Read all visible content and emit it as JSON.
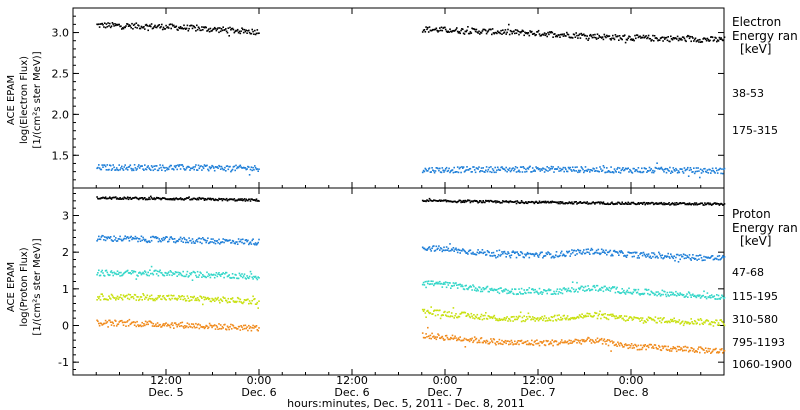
{
  "x_axis_label": "hours:minutes, Dec. 5, 2011 - Dec. 8, 2011",
  "x_ticks": [
    {
      "time": "12:00",
      "date": "Dec. 5",
      "hours": 12
    },
    {
      "time": "0:00",
      "date": "Dec. 6",
      "hours": 24
    },
    {
      "time": "12:00",
      "date": "Dec. 6",
      "hours": 36
    },
    {
      "time": "0:00",
      "date": "Dec. 7",
      "hours": 48
    },
    {
      "time": "12:00",
      "date": "Dec. 7",
      "hours": 60
    },
    {
      "time": "0:00",
      "date": "Dec. 8",
      "hours": 72
    }
  ],
  "chart_data": [
    {
      "type": "scatter",
      "panel": "electron",
      "ylabel": [
        "ACE EPAM",
        "log(Electron Flux)",
        "[1/(cm²s ster MeV)]"
      ],
      "legend_title": [
        "Electron",
        "Energy ran",
        "[keV]"
      ],
      "xlim": [
        0,
        84
      ],
      "ylim": [
        1.1,
        3.3
      ],
      "yticks": [
        1.5,
        2.0,
        2.5,
        3.0
      ],
      "ytick_labels": [
        "1.5",
        "2.0",
        "2.5",
        "3.0"
      ],
      "gaps": [
        [
          24,
          45
        ]
      ],
      "series": [
        {
          "name": "38-53",
          "color": "#000000",
          "points": [
            [
              3,
              3.1
            ],
            [
              12,
              3.08
            ],
            [
              23.5,
              3.02
            ],
            [
              45,
              3.05
            ],
            [
              60,
              3.0
            ],
            [
              70,
              2.95
            ],
            [
              84,
              2.92
            ]
          ]
        },
        {
          "name": "175-315",
          "color": "#1f7fd8",
          "points": [
            [
              3,
              1.36
            ],
            [
              12,
              1.36
            ],
            [
              23.5,
              1.35
            ],
            [
              45,
              1.33
            ],
            [
              60,
              1.34
            ],
            [
              70,
              1.33
            ],
            [
              84,
              1.32
            ]
          ]
        }
      ]
    },
    {
      "type": "scatter",
      "panel": "proton",
      "ylabel": [
        "ACE EPAM",
        "log(Proton Flux)",
        "[1/(cm²s ster MeV)]"
      ],
      "legend_title": [
        "Proton",
        "Energy ran",
        "[keV]"
      ],
      "xlim": [
        0,
        84
      ],
      "ylim": [
        -1.35,
        3.75
      ],
      "yticks": [
        -1,
        0,
        1,
        2,
        3
      ],
      "ytick_labels": [
        "-1",
        "0",
        "1",
        "2",
        "3"
      ],
      "gaps": [
        [
          24,
          45
        ]
      ],
      "series": [
        {
          "name": "47-68",
          "color": "#000000",
          "points": [
            [
              3,
              3.5
            ],
            [
              12,
              3.48
            ],
            [
              23.5,
              3.44
            ],
            [
              45,
              3.42
            ],
            [
              60,
              3.38
            ],
            [
              72,
              3.35
            ],
            [
              84,
              3.33
            ]
          ]
        },
        {
          "name": "115-195",
          "color": "#1f7fd8",
          "points": [
            [
              3,
              2.4
            ],
            [
              12,
              2.36
            ],
            [
              23.5,
              2.3
            ],
            [
              45,
              2.15
            ],
            [
              56,
              1.95
            ],
            [
              62,
              1.95
            ],
            [
              67,
              2.05
            ],
            [
              72,
              1.95
            ],
            [
              84,
              1.85
            ]
          ]
        },
        {
          "name": "310-580",
          "color": "#33d6c8",
          "points": [
            [
              3,
              1.45
            ],
            [
              12,
              1.45
            ],
            [
              23.5,
              1.35
            ],
            [
              45,
              1.2
            ],
            [
              56,
              0.95
            ],
            [
              62,
              0.95
            ],
            [
              67,
              1.05
            ],
            [
              72,
              0.95
            ],
            [
              84,
              0.8
            ]
          ]
        },
        {
          "name": "795-1193",
          "color": "#c8e010",
          "points": [
            [
              3,
              0.8
            ],
            [
              12,
              0.78
            ],
            [
              23.5,
              0.68
            ],
            [
              45,
              0.4
            ],
            [
              56,
              0.2
            ],
            [
              62,
              0.22
            ],
            [
              67,
              0.3
            ],
            [
              72,
              0.2
            ],
            [
              84,
              0.1
            ]
          ]
        },
        {
          "name": "1060-1900",
          "color": "#f08a1c",
          "points": [
            [
              3,
              0.1
            ],
            [
              12,
              0.05
            ],
            [
              23.5,
              -0.05
            ],
            [
              45,
              -0.25
            ],
            [
              56,
              -0.45
            ],
            [
              62,
              -0.45
            ],
            [
              67,
              -0.38
            ],
            [
              72,
              -0.55
            ],
            [
              84,
              -0.68
            ]
          ]
        }
      ]
    }
  ]
}
